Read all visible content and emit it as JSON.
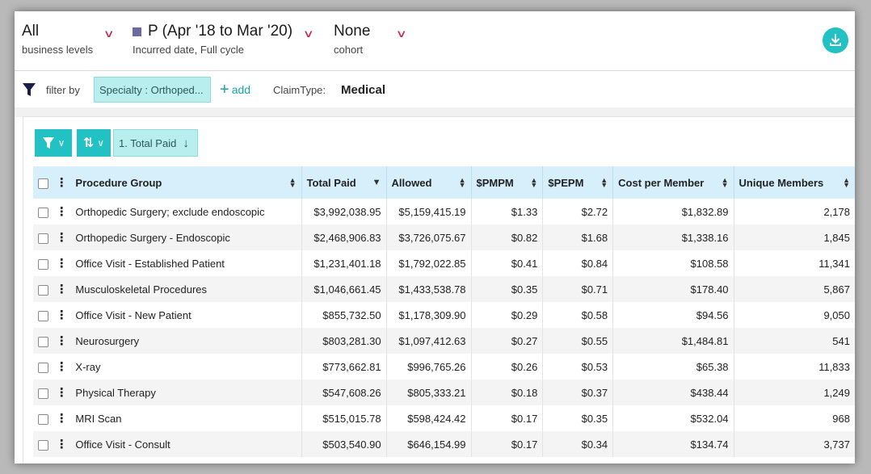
{
  "header": {
    "business": {
      "value": "All",
      "label": "business levels"
    },
    "period": {
      "value": "P (Apr '18 to Mar '20)",
      "label": "Incurred date, Full cycle",
      "swatch_color": "#6d6aa0"
    },
    "cohort": {
      "value": "None",
      "label": "cohort"
    },
    "download_icon": "download-icon"
  },
  "filterbar": {
    "filter_label": "filter by",
    "chip": "Specialty : Orthoped...",
    "add_label": "add",
    "claim_label": "ClaimType:",
    "claim_value": "Medical"
  },
  "toolbar": {
    "sort_chip": "1. Total Paid"
  },
  "table": {
    "columns": [
      "Procedure Group",
      "Total Paid",
      "Allowed",
      "$PMPM",
      "$PEPM",
      "Cost per Member",
      "Unique Members"
    ],
    "rows": [
      [
        "Orthopedic Surgery; exclude endoscopic",
        "$3,992,038.95",
        "$5,159,415.19",
        "$1.33",
        "$2.72",
        "$1,832.89",
        "2,178"
      ],
      [
        "Orthopedic Surgery - Endoscopic",
        "$2,468,906.83",
        "$3,726,075.67",
        "$0.82",
        "$1.68",
        "$1,338.16",
        "1,845"
      ],
      [
        "Office Visit - Established Patient",
        "$1,231,401.18",
        "$1,792,022.85",
        "$0.41",
        "$0.84",
        "$108.58",
        "11,341"
      ],
      [
        "Musculoskeletal Procedures",
        "$1,046,661.45",
        "$1,433,538.78",
        "$0.35",
        "$0.71",
        "$178.40",
        "5,867"
      ],
      [
        "Office Visit - New Patient",
        "$855,732.50",
        "$1,178,309.90",
        "$0.29",
        "$0.58",
        "$94.56",
        "9,050"
      ],
      [
        "Neurosurgery",
        "$803,281.30",
        "$1,097,412.63",
        "$0.27",
        "$0.55",
        "$1,484.81",
        "541"
      ],
      [
        "X-ray",
        "$773,662.81",
        "$996,765.26",
        "$0.26",
        "$0.53",
        "$65.38",
        "11,833"
      ],
      [
        "Physical Therapy",
        "$547,608.26",
        "$805,333.21",
        "$0.18",
        "$0.37",
        "$438.44",
        "1,249"
      ],
      [
        "MRI Scan",
        "$515,015.78",
        "$598,424.42",
        "$0.17",
        "$0.35",
        "$532.04",
        "968"
      ],
      [
        "Office Visit - Consult",
        "$503,540.90",
        "$646,154.99",
        "$0.17",
        "$0.34",
        "$134.74",
        "3,737"
      ]
    ]
  },
  "colors": {
    "accent": "#21c1c4",
    "chip_bg": "#b9eeee",
    "header_bg": "#d6effa",
    "chevron": "#c5284c"
  }
}
